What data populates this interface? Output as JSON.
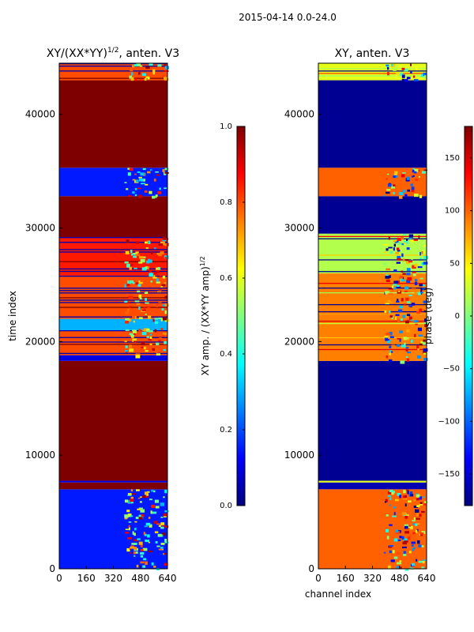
{
  "suptitle": "2015-04-14 0.0-24.0",
  "colors": {
    "jet": [
      "#00007f",
      "#0000ff",
      "#007fff",
      "#00ffff",
      "#7fff7f",
      "#ffff00",
      "#ff7f00",
      "#ff0000",
      "#7f0000"
    ],
    "frame": "#000000"
  },
  "chart_data": [
    {
      "type": "heatmap",
      "title": "XY/(XX*YY)^1/2, anten. V3",
      "title_main": "XY/(XX*YY)",
      "title_sup": "1/2",
      "title_rest": ", anten. V3",
      "xlabel": "",
      "ylabel": "time index",
      "xlim": [
        0,
        640
      ],
      "ylim": [
        0,
        44500
      ],
      "x_ticks": [
        0,
        160,
        320,
        480,
        640
      ],
      "y_ticks": [
        0,
        10000,
        20000,
        30000,
        40000
      ],
      "colorbar": {
        "label_main": "XY amp. / (XX*YY amp)",
        "label_sup": "1/2",
        "range": [
          0.0,
          1.0
        ],
        "ticks": [
          "0.0",
          "0.2",
          "0.4",
          "0.6",
          "0.8",
          "1.0"
        ]
      },
      "bands": [
        {
          "from": 0,
          "to": 7000,
          "v": 0.15,
          "noisy": true
        },
        {
          "from": 7000,
          "to": 7600,
          "v": 1.0
        },
        {
          "from": 7600,
          "to": 7750,
          "v": 0.1
        },
        {
          "from": 7750,
          "to": 18300,
          "v": 1.0
        },
        {
          "from": 18300,
          "to": 18800,
          "v": 0.1
        },
        {
          "from": 18800,
          "to": 21000,
          "v": 0.8,
          "striped": true
        },
        {
          "from": 21000,
          "to": 22000,
          "v": 0.3,
          "noisy": true
        },
        {
          "from": 22000,
          "to": 25800,
          "v": 0.8,
          "striped": true
        },
        {
          "from": 25800,
          "to": 29200,
          "v": 0.85,
          "striped": true
        },
        {
          "from": 29200,
          "to": 32800,
          "v": 1.0
        },
        {
          "from": 32800,
          "to": 35300,
          "v": 0.15,
          "noisy": true
        },
        {
          "from": 35300,
          "to": 43000,
          "v": 1.0
        },
        {
          "from": 43000,
          "to": 44500,
          "v": 0.8,
          "striped": true
        }
      ]
    },
    {
      "type": "heatmap",
      "title": "XY, anten. V3",
      "xlabel": "channel index",
      "ylabel": "",
      "xlim": [
        0,
        640
      ],
      "ylim": [
        0,
        44500
      ],
      "x_ticks": [
        0,
        160,
        320,
        480,
        640
      ],
      "y_ticks": [
        0,
        10000,
        20000,
        30000,
        40000
      ],
      "colorbar": {
        "label": "phase (deg)",
        "range": [
          -180,
          180
        ],
        "ticks": [
          "−150",
          "−100",
          "−50",
          "0",
          "50",
          "100",
          "150"
        ]
      },
      "bands": [
        {
          "from": 0,
          "to": 7000,
          "v": 0.78,
          "noisy": true
        },
        {
          "from": 7000,
          "to": 7600,
          "v": 0.05
        },
        {
          "from": 7600,
          "to": 7750,
          "v": 0.6
        },
        {
          "from": 7750,
          "to": 18300,
          "v": 0.02
        },
        {
          "from": 18300,
          "to": 26000,
          "v": 0.75,
          "striped": true
        },
        {
          "from": 26000,
          "to": 29500,
          "v": 0.55,
          "striped": true
        },
        {
          "from": 29500,
          "to": 32800,
          "v": 0.02
        },
        {
          "from": 32800,
          "to": 35300,
          "v": 0.78,
          "noisy": true
        },
        {
          "from": 35300,
          "to": 43000,
          "v": 0.02
        },
        {
          "from": 43000,
          "to": 44500,
          "v": 0.6,
          "striped": true
        }
      ]
    }
  ]
}
